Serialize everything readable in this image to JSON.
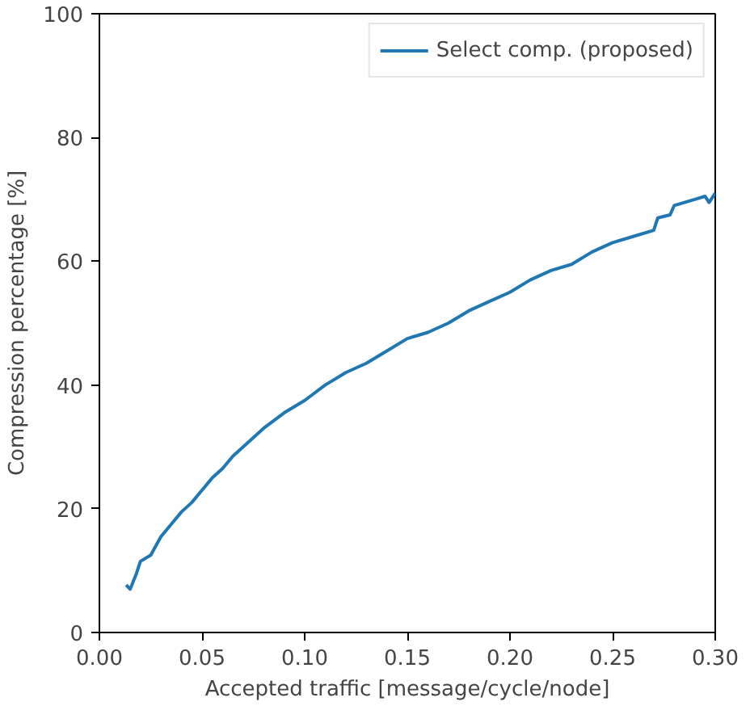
{
  "chart_data": {
    "type": "line",
    "xlabel": "Accepted traffic [message/cycle/node]",
    "ylabel": "Compression percentage [%]",
    "x": [
      0.013,
      0.015,
      0.018,
      0.02,
      0.025,
      0.03,
      0.035,
      0.04,
      0.045,
      0.05,
      0.055,
      0.06,
      0.065,
      0.07,
      0.075,
      0.08,
      0.09,
      0.1,
      0.11,
      0.12,
      0.13,
      0.14,
      0.15,
      0.16,
      0.17,
      0.18,
      0.19,
      0.2,
      0.21,
      0.22,
      0.23,
      0.24,
      0.25,
      0.26,
      0.27,
      0.272,
      0.278,
      0.28,
      0.29,
      0.295,
      0.297,
      0.3
    ],
    "series": [
      {
        "name": "Select comp. (proposed)",
        "color": "#1f77b4",
        "values": [
          7.7,
          7.0,
          9.5,
          11.5,
          12.5,
          15.5,
          17.5,
          19.5,
          21,
          23,
          25,
          26.5,
          28.5,
          30,
          31.5,
          33,
          35.5,
          37.5,
          40,
          42,
          43.5,
          45.5,
          47.5,
          48.5,
          50,
          52,
          53.5,
          55,
          57,
          58.5,
          59.5,
          61.5,
          63,
          64,
          65,
          67,
          67.5,
          69,
          70,
          70.5,
          69.5,
          71
        ]
      }
    ],
    "xlim": [
      0,
      0.3
    ],
    "ylim": [
      0,
      100
    ],
    "xticks": [
      {
        "value": 0,
        "label": "0.00"
      },
      {
        "value": 0.05,
        "label": "0.05"
      },
      {
        "value": 0.1,
        "label": "0.10"
      },
      {
        "value": 0.15,
        "label": "0.15"
      },
      {
        "value": 0.2,
        "label": "0.20"
      },
      {
        "value": 0.25,
        "label": "0.25"
      },
      {
        "value": 0.3,
        "label": "0.30"
      }
    ],
    "yticks": [
      0,
      20,
      40,
      60,
      80,
      100
    ],
    "legend": "top right",
    "grid": false,
    "marker": "none",
    "line_style": "solid"
  }
}
